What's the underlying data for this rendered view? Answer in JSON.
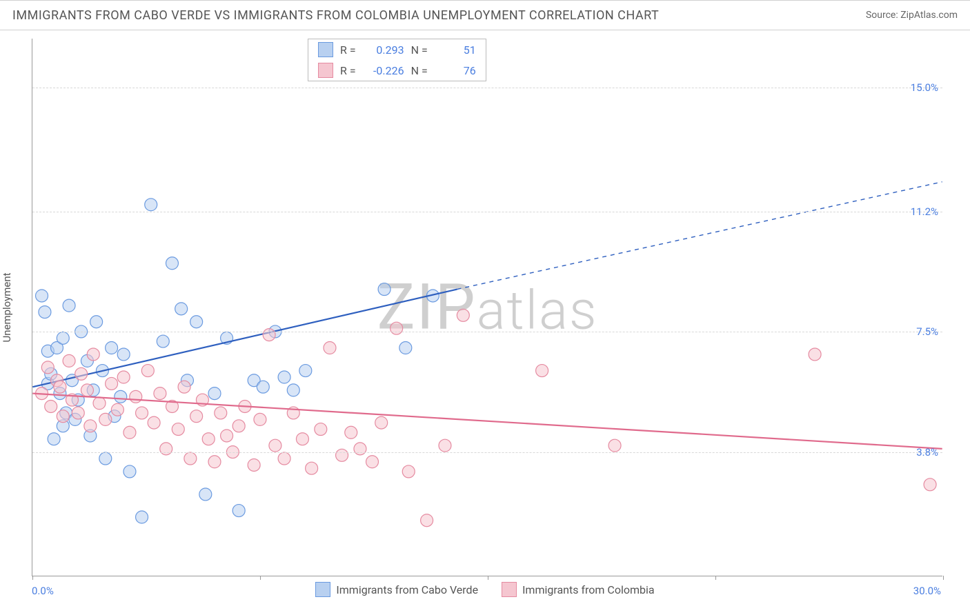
{
  "header": {
    "title": "IMMIGRANTS FROM CABO VERDE VS IMMIGRANTS FROM COLOMBIA UNEMPLOYMENT CORRELATION CHART",
    "source": "Source: ZipAtlas.com"
  },
  "ylabel": "Unemployment",
  "watermark": "ZIPatlas",
  "chart": {
    "type": "scatter-with-regression",
    "background_color": "#ffffff",
    "grid_color": "#d8d8d8",
    "axis_color": "#999999",
    "tick_label_color": "#4a7ee0",
    "text_color": "#555555",
    "xlim": [
      0.0,
      30.0
    ],
    "ylim": [
      0.0,
      16.5
    ],
    "xmin_label": "0.0%",
    "xmax_label": "30.0%",
    "yticks": [
      {
        "v": 3.8,
        "label": "3.8%"
      },
      {
        "v": 7.5,
        "label": "7.5%"
      },
      {
        "v": 11.2,
        "label": "11.2%"
      },
      {
        "v": 15.0,
        "label": "15.0%"
      }
    ],
    "xticks_at": [
      0,
      7.5,
      15.0,
      22.5,
      30.0
    ],
    "marker_radius": 9,
    "marker_opacity": 0.55,
    "line_width": 2.2,
    "series": [
      {
        "name": "Immigrants from Cabo Verde",
        "color_fill": "#b8d0f0",
        "color_stroke": "#6a9ae0",
        "line_color": "#2e5fbf",
        "R": "0.293",
        "N": "51",
        "regression": {
          "x1": 0.0,
          "y1": 5.8,
          "x2": 14.0,
          "y2": 8.8,
          "extend_x2": 30.0,
          "extend_y2": 12.1
        },
        "points": [
          [
            0.3,
            8.6
          ],
          [
            0.4,
            8.1
          ],
          [
            0.5,
            6.9
          ],
          [
            0.5,
            5.9
          ],
          [
            0.6,
            6.2
          ],
          [
            0.7,
            4.2
          ],
          [
            0.8,
            7.0
          ],
          [
            0.9,
            5.6
          ],
          [
            1.0,
            7.3
          ],
          [
            1.0,
            4.6
          ],
          [
            1.1,
            5.0
          ],
          [
            1.2,
            8.3
          ],
          [
            1.3,
            6.0
          ],
          [
            1.4,
            4.8
          ],
          [
            1.5,
            5.4
          ],
          [
            1.6,
            7.5
          ],
          [
            1.8,
            6.6
          ],
          [
            1.9,
            4.3
          ],
          [
            2.0,
            5.7
          ],
          [
            2.1,
            7.8
          ],
          [
            2.3,
            6.3
          ],
          [
            2.4,
            3.6
          ],
          [
            2.6,
            7.0
          ],
          [
            2.7,
            4.9
          ],
          [
            2.9,
            5.5
          ],
          [
            3.0,
            6.8
          ],
          [
            3.2,
            3.2
          ],
          [
            3.6,
            1.8
          ],
          [
            3.9,
            11.4
          ],
          [
            4.3,
            7.2
          ],
          [
            4.6,
            9.6
          ],
          [
            4.9,
            8.2
          ],
          [
            5.1,
            6.0
          ],
          [
            5.4,
            7.8
          ],
          [
            5.7,
            2.5
          ],
          [
            6.0,
            5.6
          ],
          [
            6.4,
            7.3
          ],
          [
            6.8,
            2.0
          ],
          [
            7.3,
            6.0
          ],
          [
            7.6,
            5.8
          ],
          [
            8.0,
            7.5
          ],
          [
            8.3,
            6.1
          ],
          [
            8.6,
            5.7
          ],
          [
            9.0,
            6.3
          ],
          [
            11.6,
            8.8
          ],
          [
            12.3,
            7.0
          ],
          [
            13.2,
            8.6
          ]
        ]
      },
      {
        "name": "Immigrants from Colombia",
        "color_fill": "#f5c6d0",
        "color_stroke": "#e58aa0",
        "line_color": "#e06a8c",
        "R": "-0.226",
        "N": "76",
        "regression": {
          "x1": 0.0,
          "y1": 5.6,
          "x2": 30.0,
          "y2": 3.9,
          "extend_x2": 30.0,
          "extend_y2": 3.9
        },
        "points": [
          [
            0.3,
            5.6
          ],
          [
            0.5,
            6.4
          ],
          [
            0.6,
            5.2
          ],
          [
            0.8,
            6.0
          ],
          [
            0.9,
            5.8
          ],
          [
            1.0,
            4.9
          ],
          [
            1.2,
            6.6
          ],
          [
            1.3,
            5.4
          ],
          [
            1.5,
            5.0
          ],
          [
            1.6,
            6.2
          ],
          [
            1.8,
            5.7
          ],
          [
            1.9,
            4.6
          ],
          [
            2.0,
            6.8
          ],
          [
            2.2,
            5.3
          ],
          [
            2.4,
            4.8
          ],
          [
            2.6,
            5.9
          ],
          [
            2.8,
            5.1
          ],
          [
            3.0,
            6.1
          ],
          [
            3.2,
            4.4
          ],
          [
            3.4,
            5.5
          ],
          [
            3.6,
            5.0
          ],
          [
            3.8,
            6.3
          ],
          [
            4.0,
            4.7
          ],
          [
            4.2,
            5.6
          ],
          [
            4.4,
            3.9
          ],
          [
            4.6,
            5.2
          ],
          [
            4.8,
            4.5
          ],
          [
            5.0,
            5.8
          ],
          [
            5.2,
            3.6
          ],
          [
            5.4,
            4.9
          ],
          [
            5.6,
            5.4
          ],
          [
            5.8,
            4.2
          ],
          [
            6.0,
            3.5
          ],
          [
            6.2,
            5.0
          ],
          [
            6.4,
            4.3
          ],
          [
            6.6,
            3.8
          ],
          [
            6.8,
            4.6
          ],
          [
            7.0,
            5.2
          ],
          [
            7.3,
            3.4
          ],
          [
            7.5,
            4.8
          ],
          [
            7.8,
            7.4
          ],
          [
            8.0,
            4.0
          ],
          [
            8.3,
            3.6
          ],
          [
            8.6,
            5.0
          ],
          [
            8.9,
            4.2
          ],
          [
            9.2,
            3.3
          ],
          [
            9.5,
            4.5
          ],
          [
            9.8,
            7.0
          ],
          [
            10.2,
            3.7
          ],
          [
            10.5,
            4.4
          ],
          [
            10.8,
            3.9
          ],
          [
            11.2,
            3.5
          ],
          [
            11.5,
            4.7
          ],
          [
            12.0,
            7.6
          ],
          [
            12.4,
            3.2
          ],
          [
            13.0,
            1.7
          ],
          [
            13.6,
            4.0
          ],
          [
            14.2,
            8.0
          ],
          [
            16.8,
            6.3
          ],
          [
            19.2,
            4.0
          ],
          [
            25.8,
            6.8
          ],
          [
            29.6,
            2.8
          ]
        ]
      }
    ],
    "bottom_legend": [
      {
        "swatch": "blue",
        "label": "Immigrants from Cabo Verde"
      },
      {
        "swatch": "pink",
        "label": "Immigrants from Colombia"
      }
    ]
  }
}
